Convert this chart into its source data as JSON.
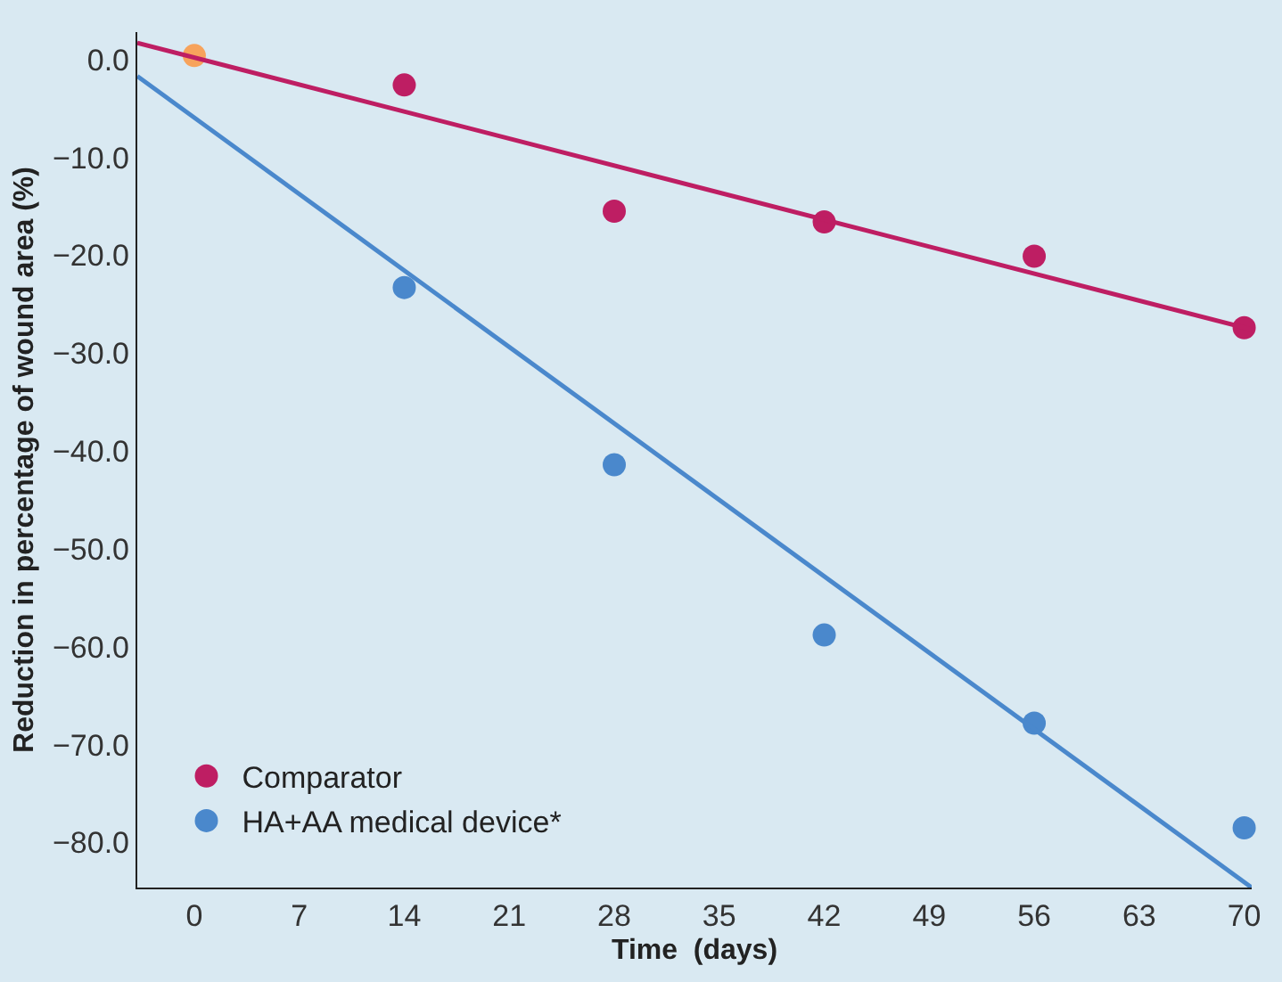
{
  "chart_data": {
    "type": "scatter",
    "xlabel": "Time  (days)",
    "ylabel": "Reduction in percentage of wound area (%)",
    "xlim": [
      -3.8,
      70.5
    ],
    "xticks": [
      0,
      7,
      14,
      21,
      28,
      35,
      42,
      49,
      56,
      63,
      70
    ],
    "ylim": [
      -84.6,
      2.8
    ],
    "yticks": [
      {
        "value": 0,
        "label": "0.0"
      },
      {
        "value": -10,
        "label": "−10.0"
      },
      {
        "value": -20,
        "label": "−20.0"
      },
      {
        "value": -30,
        "label": "−30.0"
      },
      {
        "value": -40,
        "label": "−40.0"
      },
      {
        "value": -50,
        "label": "−50.0"
      },
      {
        "value": -60,
        "label": "−60.0"
      },
      {
        "value": -70,
        "label": "−70.0"
      },
      {
        "value": -80,
        "label": "−80.0"
      }
    ],
    "grid": false,
    "legend": "bottom left",
    "marker": "circle",
    "series": [
      {
        "name": "Comparator",
        "color": "#be1e63",
        "x": [
          14,
          28,
          42,
          56,
          70
        ],
        "values": [
          -2.6,
          -15.5,
          -16.6,
          -20.1,
          -27.4
        ]
      },
      {
        "color": "#f7a35c",
        "x": [
          0
        ],
        "values": [
          0.4
        ]
      },
      {
        "name": "HA+AA medical device*",
        "color": "#4a88cc",
        "x": [
          14,
          28,
          42,
          56,
          70
        ],
        "values": [
          -23.3,
          -41.4,
          -58.8,
          -67.8,
          -78.5
        ]
      },
      {
        "type": "line",
        "marker": "none",
        "color": "#be1e63",
        "x": [
          -3.8,
          70.5
        ],
        "values": [
          1.7,
          -27.6
        ]
      },
      {
        "type": "line",
        "marker": "none",
        "color": "#4a88cc",
        "x": [
          -3.8,
          70.5
        ],
        "values": [
          -1.7,
          -84.6
        ]
      }
    ]
  }
}
